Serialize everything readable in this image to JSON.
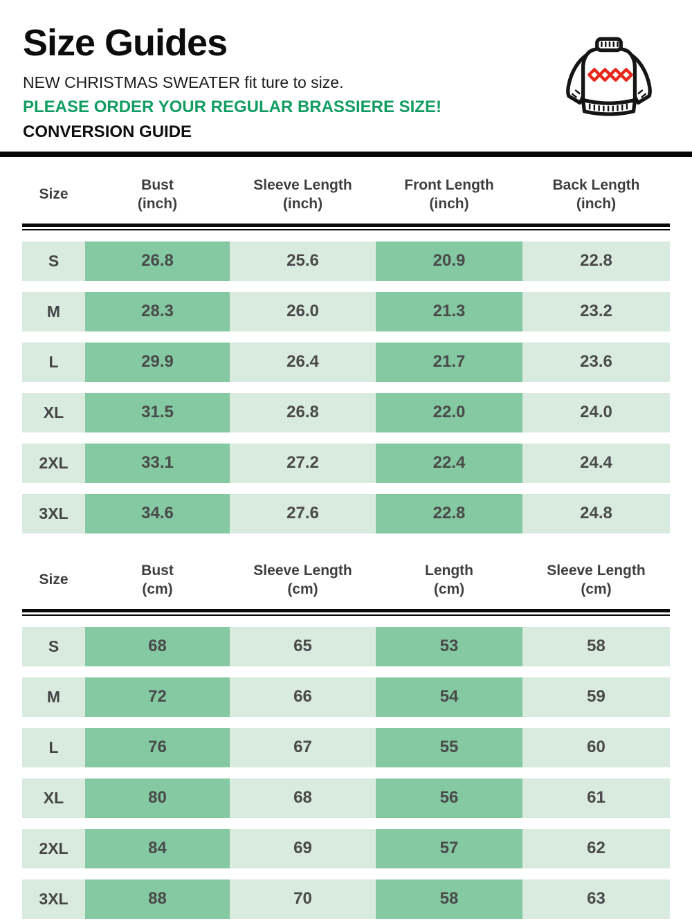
{
  "page": {
    "title": "Size Guides",
    "subtitle": "NEW CHRISTMAS SWEATER fit ture to size.",
    "notice": "PLEASE ORDER YOUR REGULAR BRASSIERE SIZE!",
    "conversion_label": "CONVERSION GUIDE"
  },
  "icons": {
    "sweater": "christmas-sweater-icon"
  },
  "colors": {
    "accent_green": "#119d62",
    "cell_dark_green": "#84c9a2",
    "cell_light_green": "#d9ebdf",
    "cell_text": "#4a4a4a",
    "divider_black": "#070707",
    "diamond_red": "#e8271c"
  },
  "tables": [
    {
      "id": "inch",
      "columns": [
        {
          "label": "Size",
          "unit": ""
        },
        {
          "label": "Bust",
          "unit": "(inch)"
        },
        {
          "label": "Sleeve Length",
          "unit": "(inch)"
        },
        {
          "label": "Front Length",
          "unit": "(inch)"
        },
        {
          "label": "Back Length",
          "unit": "(inch)"
        }
      ],
      "rows": [
        {
          "size": "S",
          "values": [
            "26.8",
            "25.6",
            "20.9",
            "22.8"
          ]
        },
        {
          "size": "M",
          "values": [
            "28.3",
            "26.0",
            "21.3",
            "23.2"
          ]
        },
        {
          "size": "L",
          "values": [
            "29.9",
            "26.4",
            "21.7",
            "23.6"
          ]
        },
        {
          "size": "XL",
          "values": [
            "31.5",
            "26.8",
            "22.0",
            "24.0"
          ]
        },
        {
          "size": "2XL",
          "values": [
            "33.1",
            "27.2",
            "22.4",
            "24.4"
          ]
        },
        {
          "size": "3XL",
          "values": [
            "34.6",
            "27.6",
            "22.8",
            "24.8"
          ]
        }
      ]
    },
    {
      "id": "cm",
      "columns": [
        {
          "label": "Size",
          "unit": ""
        },
        {
          "label": "Bust",
          "unit": "(cm)"
        },
        {
          "label": "Sleeve Length",
          "unit": "(cm)"
        },
        {
          "label": "Length",
          "unit": "(cm)"
        },
        {
          "label": "Sleeve Length",
          "unit": "(cm)"
        }
      ],
      "rows": [
        {
          "size": "S",
          "values": [
            "68",
            "65",
            "53",
            "58"
          ]
        },
        {
          "size": "M",
          "values": [
            "72",
            "66",
            "54",
            "59"
          ]
        },
        {
          "size": "L",
          "values": [
            "76",
            "67",
            "55",
            "60"
          ]
        },
        {
          "size": "XL",
          "values": [
            "80",
            "68",
            "56",
            "61"
          ]
        },
        {
          "size": "2XL",
          "values": [
            "84",
            "69",
            "57",
            "62"
          ]
        },
        {
          "size": "3XL",
          "values": [
            "88",
            "70",
            "58",
            "63"
          ]
        }
      ]
    }
  ]
}
